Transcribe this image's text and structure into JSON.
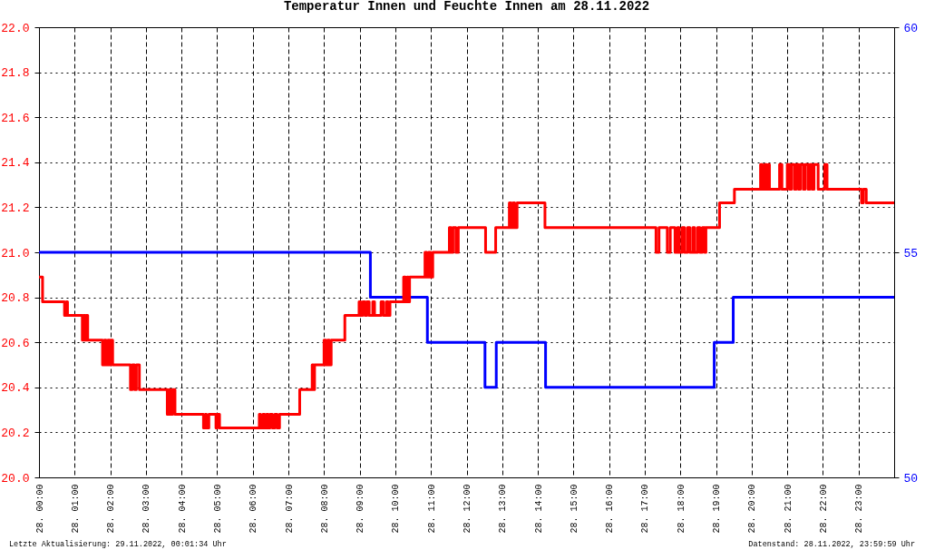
{
  "chart_data": {
    "type": "step",
    "title": "Temperatur Innen und Feuchte Innen am 28.11.2022",
    "annotations": [
      "Letzte Aktualisierung: 29.11.2022, 00:01:34 Uhr",
      "Datenstand: 28.11.2022, 23:59:59 Uhr"
    ],
    "xlim": [
      "2022-11-28T00:00",
      "2022-11-29T00:00"
    ],
    "xticks": [
      {
        "value": "2022-11-28T00:00",
        "label": "28. 00:00"
      },
      {
        "value": "2022-11-28T01:00",
        "label": "28. 01:00"
      },
      {
        "value": "2022-11-28T02:00",
        "label": "28. 02:00"
      },
      {
        "value": "2022-11-28T03:00",
        "label": "28. 03:00"
      },
      {
        "value": "2022-11-28T04:00",
        "label": "28. 04:00"
      },
      {
        "value": "2022-11-28T05:00",
        "label": "28. 05:00"
      },
      {
        "value": "2022-11-28T06:00",
        "label": "28. 06:00"
      },
      {
        "value": "2022-11-28T07:00",
        "label": "28. 07:00"
      },
      {
        "value": "2022-11-28T08:00",
        "label": "28. 08:00"
      },
      {
        "value": "2022-11-28T09:00",
        "label": "28. 09:00"
      },
      {
        "value": "2022-11-28T10:00",
        "label": "28. 10:00"
      },
      {
        "value": "2022-11-28T11:00",
        "label": "28. 11:00"
      },
      {
        "value": "2022-11-28T12:00",
        "label": "28. 12:00"
      },
      {
        "value": "2022-11-28T13:00",
        "label": "28. 13:00"
      },
      {
        "value": "2022-11-28T14:00",
        "label": "28. 14:00"
      },
      {
        "value": "2022-11-28T15:00",
        "label": "28. 15:00"
      },
      {
        "value": "2022-11-28T16:00",
        "label": "28. 16:00"
      },
      {
        "value": "2022-11-28T17:00",
        "label": "28. 17:00"
      },
      {
        "value": "2022-11-28T18:00",
        "label": "28. 18:00"
      },
      {
        "value": "2022-11-28T19:00",
        "label": "28. 19:00"
      },
      {
        "value": "2022-11-28T20:00",
        "label": "28. 20:00"
      },
      {
        "value": "2022-11-28T21:00",
        "label": "28. 21:00"
      },
      {
        "value": "2022-11-28T22:00",
        "label": "28. 22:00"
      },
      {
        "value": "2022-11-28T23:00",
        "label": "28. 23:00"
      }
    ],
    "ylim": [
      20,
      22
    ],
    "yticks": [
      {
        "value": 20,
        "label": "20.0"
      },
      20.2,
      20.4,
      20.6,
      20.8,
      {
        "value": 21,
        "label": "21.0"
      },
      21.2,
      21.4,
      21.6,
      21.8,
      {
        "value": 22,
        "label": "22.0"
      }
    ],
    "y2lim": [
      50,
      60
    ],
    "y2ticks": [
      50,
      55,
      60
    ],
    "grid": true,
    "series": [
      {
        "color": "#ff0000",
        "x": [
          "2022-11-28T00:00",
          "2022-11-28T00:06",
          "2022-11-28T00:43",
          "2022-11-28T00:46",
          "2022-11-28T00:48",
          "2022-11-28T01:13",
          "2022-11-28T01:15",
          "2022-11-28T01:18",
          "2022-11-28T01:20",
          "2022-11-28T01:22",
          "2022-11-28T01:47",
          "2022-11-28T01:50",
          "2022-11-28T01:53",
          "2022-11-28T01:56",
          "2022-11-28T01:58",
          "2022-11-28T02:00",
          "2022-11-28T02:04",
          "2022-11-28T02:34",
          "2022-11-28T02:37",
          "2022-11-28T02:41",
          "2022-11-28T02:44",
          "2022-11-28T02:49",
          "2022-11-28T03:36",
          "2022-11-28T03:39",
          "2022-11-28T03:42",
          "2022-11-28T03:45",
          "2022-11-28T03:49",
          "2022-11-28T04:37",
          "2022-11-28T04:40",
          "2022-11-28T04:42",
          "2022-11-28T04:46",
          "2022-11-28T04:58",
          "2022-11-28T05:00",
          "2022-11-28T05:04",
          "2022-11-28T06:11",
          "2022-11-28T06:13",
          "2022-11-28T06:17",
          "2022-11-28T06:20",
          "2022-11-28T06:23",
          "2022-11-28T06:26",
          "2022-11-28T06:29",
          "2022-11-28T06:33",
          "2022-11-28T06:37",
          "2022-11-28T06:41",
          "2022-11-28T06:45",
          "2022-11-28T07:19",
          "2022-11-28T07:40",
          "2022-11-28T07:42",
          "2022-11-28T07:44",
          "2022-11-28T08:00",
          "2022-11-28T08:03",
          "2022-11-28T08:06",
          "2022-11-28T08:09",
          "2022-11-28T08:12",
          "2022-11-28T08:35",
          "2022-11-28T08:59",
          "2022-11-28T09:02",
          "2022-11-28T09:05",
          "2022-11-28T09:09",
          "2022-11-28T09:12",
          "2022-11-28T09:16",
          "2022-11-28T09:22",
          "2022-11-28T09:25",
          "2022-11-28T09:36",
          "2022-11-28T09:40",
          "2022-11-28T09:45",
          "2022-11-28T09:48",
          "2022-11-28T09:51",
          "2022-11-28T10:14",
          "2022-11-28T10:17",
          "2022-11-28T10:20",
          "2022-11-28T10:22",
          "2022-11-28T10:24",
          "2022-11-28T10:50",
          "2022-11-28T10:53",
          "2022-11-28T10:56",
          "2022-11-28T10:59",
          "2022-11-28T11:03",
          "2022-11-28T11:31",
          "2022-11-28T11:34",
          "2022-11-28T11:37",
          "2022-11-28T11:42",
          "2022-11-28T11:46",
          "2022-11-28T12:32",
          "2022-11-28T12:49",
          "2022-11-28T13:12",
          "2022-11-28T13:15",
          "2022-11-28T13:18",
          "2022-11-28T13:21",
          "2022-11-28T13:25",
          "2022-11-28T14:12",
          "2022-11-28T17:19",
          "2022-11-28T17:24",
          "2022-11-28T17:38",
          "2022-11-28T17:43",
          "2022-11-28T17:51",
          "2022-11-28T17:55",
          "2022-11-28T17:58",
          "2022-11-28T18:03",
          "2022-11-28T18:07",
          "2022-11-28T18:12",
          "2022-11-28T18:16",
          "2022-11-28T18:21",
          "2022-11-28T18:24",
          "2022-11-28T18:29",
          "2022-11-28T18:33",
          "2022-11-28T18:37",
          "2022-11-28T18:41",
          "2022-11-28T18:43",
          "2022-11-28T19:06",
          "2022-11-28T19:31",
          "2022-11-28T20:15",
          "2022-11-28T20:18",
          "2022-11-28T20:22",
          "2022-11-28T20:25",
          "2022-11-28T20:28",
          "2022-11-28T20:30",
          "2022-11-28T20:47",
          "2022-11-28T20:51",
          "2022-11-28T21:00",
          "2022-11-28T21:04",
          "2022-11-28T21:07",
          "2022-11-28T21:12",
          "2022-11-28T21:15",
          "2022-11-28T21:19",
          "2022-11-28T21:22",
          "2022-11-28T21:27",
          "2022-11-28T21:30",
          "2022-11-28T21:35",
          "2022-11-28T21:38",
          "2022-11-28T21:42",
          "2022-11-28T21:45",
          "2022-11-28T21:52",
          "2022-11-28T22:03",
          "2022-11-28T22:07",
          "2022-11-28T23:05",
          "2022-11-28T23:08",
          "2022-11-28T23:13",
          "2022-11-29T00:00"
        ],
        "values": [
          20.89,
          20.78,
          20.72,
          20.78,
          20.72,
          20.61,
          20.72,
          20.61,
          20.72,
          20.61,
          20.5,
          20.61,
          20.5,
          20.61,
          20.5,
          20.61,
          20.5,
          20.39,
          20.5,
          20.39,
          20.5,
          20.39,
          20.28,
          20.39,
          20.28,
          20.39,
          20.28,
          20.22,
          20.28,
          20.22,
          20.28,
          20.22,
          20.28,
          20.22,
          20.28,
          20.22,
          20.28,
          20.22,
          20.28,
          20.22,
          20.28,
          20.22,
          20.28,
          20.22,
          20.28,
          20.39,
          20.5,
          20.39,
          20.5,
          20.61,
          20.5,
          20.61,
          20.5,
          20.61,
          20.72,
          20.78,
          20.72,
          20.78,
          20.72,
          20.78,
          20.72,
          20.78,
          20.72,
          20.78,
          20.72,
          20.78,
          20.72,
          20.78,
          20.89,
          20.78,
          20.89,
          20.78,
          20.89,
          21.0,
          20.89,
          21.0,
          20.89,
          21.0,
          21.11,
          21.0,
          21.11,
          21.0,
          21.11,
          21.0,
          21.11,
          21.22,
          21.11,
          21.22,
          21.11,
          21.22,
          21.11,
          21.0,
          21.11,
          21.0,
          21.11,
          21.0,
          21.11,
          21.0,
          21.11,
          21.0,
          21.11,
          21.0,
          21.11,
          21.0,
          21.11,
          21.0,
          21.11,
          21.0,
          21.11,
          21.22,
          21.28,
          21.39,
          21.28,
          21.39,
          21.28,
          21.39,
          21.28,
          21.39,
          21.28,
          21.39,
          21.28,
          21.39,
          21.28,
          21.39,
          21.28,
          21.39,
          21.28,
          21.39,
          21.28,
          21.39,
          21.28,
          21.39,
          21.28,
          21.39,
          21.28,
          21.22,
          21.28,
          21.22,
          21.22
        ]
      },
      {
        "color": "#0000ff",
        "axis": "y2",
        "x": [
          "2022-11-28T00:00",
          "2022-11-28T09:18",
          "2022-11-28T10:54",
          "2022-11-28T12:31",
          "2022-11-28T12:50",
          "2022-11-28T14:13",
          "2022-11-28T18:57",
          "2022-11-28T19:29",
          "2022-11-29T00:00"
        ],
        "values": [
          55,
          54,
          53,
          52,
          53,
          52,
          53,
          54,
          54
        ]
      }
    ]
  }
}
